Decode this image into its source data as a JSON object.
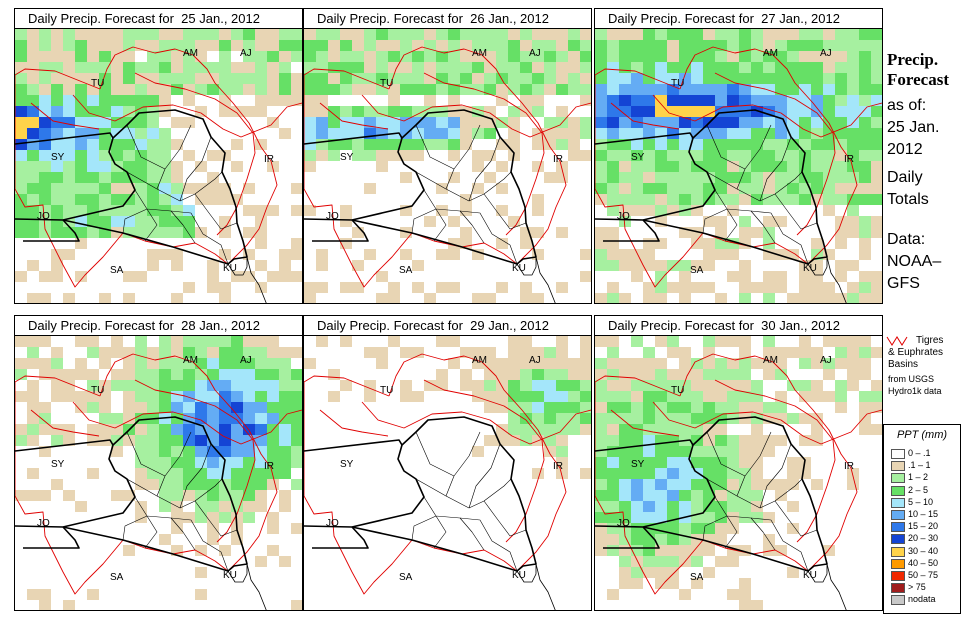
{
  "panels": [
    {
      "title_prefix": "Daily Precip. Forecast for",
      "date": "25 Jan., 2012"
    },
    {
      "title_prefix": "Daily Precip. Forecast for",
      "date": "26 Jan., 2012"
    },
    {
      "title_prefix": "Daily Precip. Forecast for",
      "date": "27 Jan., 2012"
    },
    {
      "title_prefix": "Daily Precip. Forecast for",
      "date": "28 Jan., 2012"
    },
    {
      "title_prefix": "Daily Precip. Forecast for",
      "date": "29 Jan., 2012"
    },
    {
      "title_prefix": "Daily Precip. Forecast for",
      "date": "30 Jan., 2012"
    }
  ],
  "map_labels": [
    "AM",
    "AJ",
    "TU",
    "SY",
    "IR",
    "JO",
    "SA",
    "KU"
  ],
  "sidebar": {
    "title_line1": "Precip.",
    "title_line2": "Forecast",
    "asof_line1": "as of:",
    "asof_line2": "25 Jan.",
    "asof_line3": "2012",
    "totals_line1": "Daily",
    "totals_line2": "Totals",
    "data_line1": "Data:",
    "data_line2": "NOAA–",
    "data_line3": "GFS"
  },
  "basin_note": {
    "line1": "Tigres",
    "line2": "& Euphrates",
    "line3": "Basins",
    "line4": "from USGS",
    "line5": "Hydro1k data",
    "line_color": "#e00000"
  },
  "legend": {
    "title": "PPT (mm)",
    "items": [
      {
        "label": "0 – .1",
        "color": "#ffffff"
      },
      {
        "label": ".1 – 1",
        "color": "#e8d5b4"
      },
      {
        "label": "1 – 2",
        "color": "#a6f0a0"
      },
      {
        "label": "2 – 5",
        "color": "#66e066"
      },
      {
        "label": "5 – 10",
        "color": "#a4e6fa"
      },
      {
        "label": "10 – 15",
        "color": "#64acf4"
      },
      {
        "label": "15 – 20",
        "color": "#2e78ea"
      },
      {
        "label": "20 – 30",
        "color": "#1444d4"
      },
      {
        "label": "30 – 40",
        "color": "#ffd34a"
      },
      {
        "label": "40 – 50",
        "color": "#ff9a00"
      },
      {
        "label": "50 – 75",
        "color": "#f02800"
      },
      {
        "label": "> 75",
        "color": "#a01c1c"
      },
      {
        "label": "nodata",
        "color": "#c8c8c8"
      }
    ]
  }
}
